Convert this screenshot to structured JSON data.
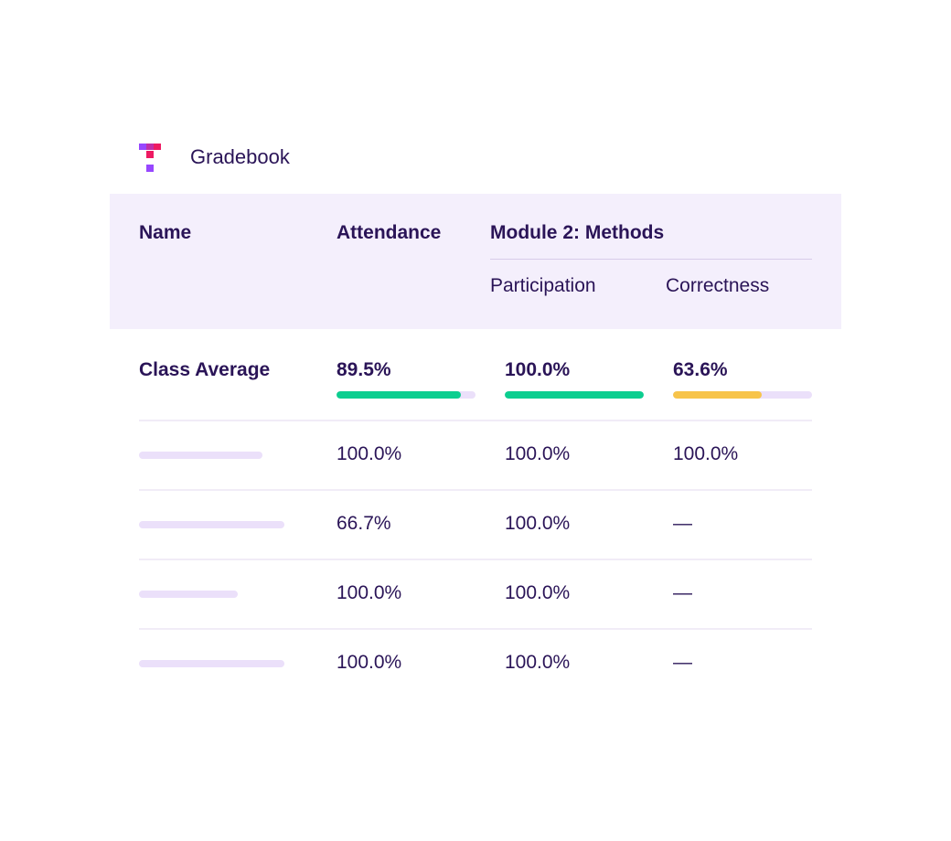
{
  "app": {
    "title": "Gradebook",
    "logo_colors": {
      "purple": "#9747ff",
      "red": "#ee1a62"
    }
  },
  "table": {
    "columns": {
      "name": "Name",
      "attendance": "Attendance",
      "module_group": "Module 2: Methods",
      "participation": "Participation",
      "correctness": "Correctness"
    },
    "class_average": {
      "label": "Class Average",
      "attendance": {
        "text": "89.5%",
        "value": 0.895,
        "color": "#0cce8f"
      },
      "participation": {
        "text": "100.0%",
        "value": 1.0,
        "color": "#0cce8f"
      },
      "correctness": {
        "text": "63.6%",
        "value": 0.636,
        "color": "#f7c44a"
      }
    },
    "rows": [
      {
        "attendance": "100.0%",
        "participation": "100.0%",
        "correctness": "100.0%"
      },
      {
        "attendance": "66.7%",
        "participation": "100.0%",
        "correctness": "—"
      },
      {
        "attendance": "100.0%",
        "participation": "100.0%",
        "correctness": "—"
      },
      {
        "attendance": "100.0%",
        "participation": "100.0%",
        "correctness": "—"
      }
    ]
  },
  "colors": {
    "header_background": "#f4effc",
    "text": "#2a1457",
    "track": "#ebe0fa"
  }
}
